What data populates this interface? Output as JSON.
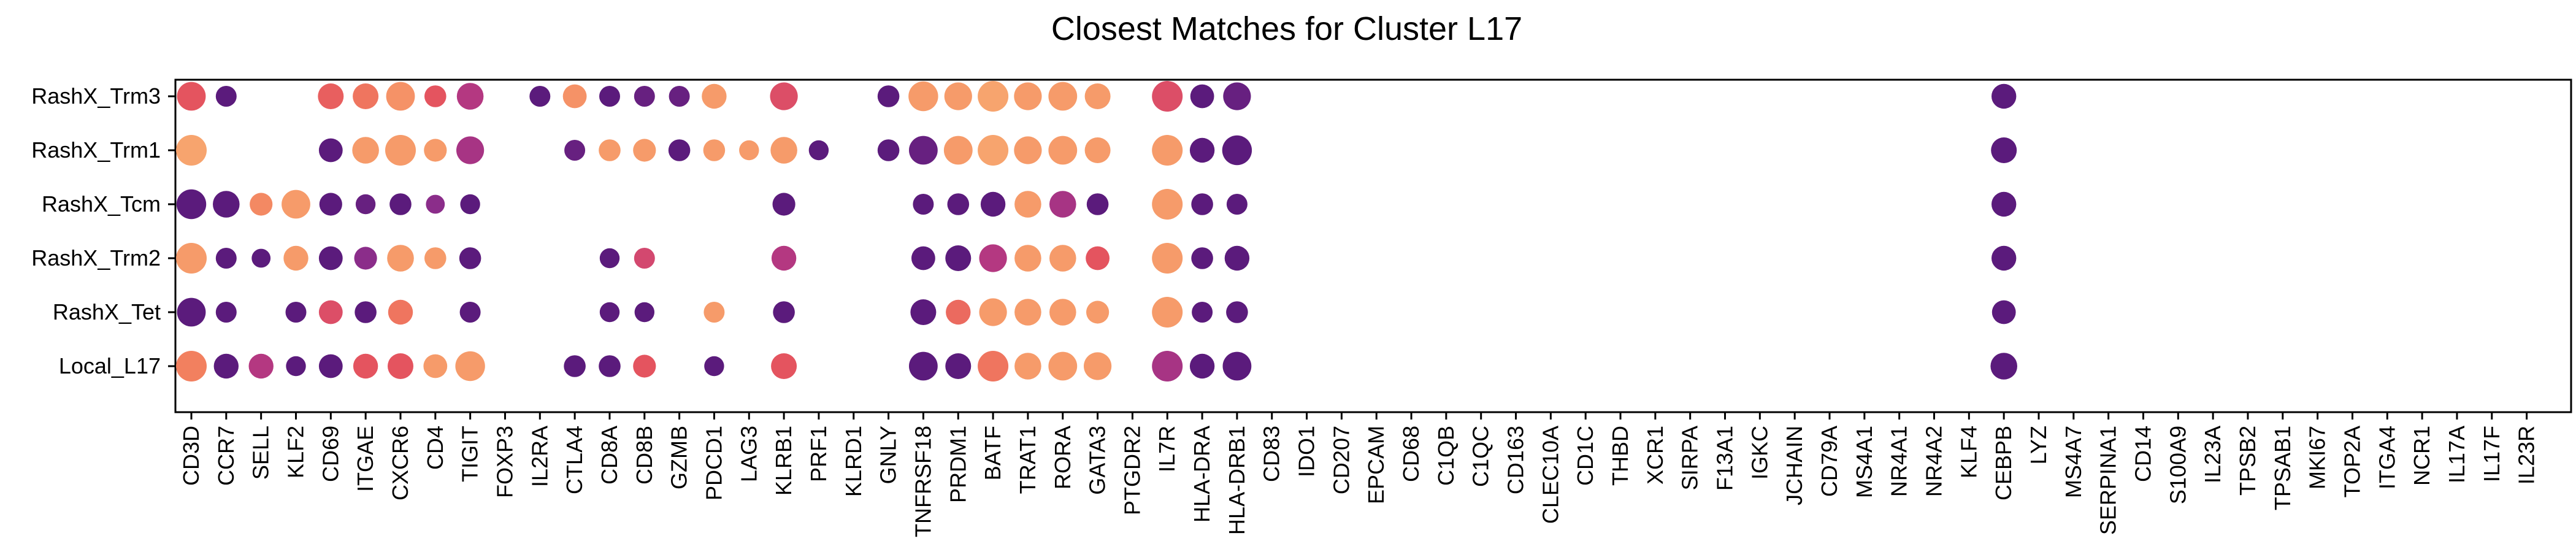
{
  "chart_data": {
    "type": "dotplot",
    "title": "Closest Matches for Cluster L17",
    "xlabel": "",
    "ylabel": "",
    "grid": false,
    "legend": "none",
    "rows": [
      "RashX_Trm3",
      "RashX_Trm1",
      "RashX_Tcm",
      "RashX_Trm2",
      "RashX_Tet",
      "Local_L17"
    ],
    "genes": [
      "CD3D",
      "CCR7",
      "SELL",
      "KLF2",
      "CD69",
      "ITGAE",
      "CXCR6",
      "CD4",
      "TIGIT",
      "FOXP3",
      "IL2RA",
      "CTLA4",
      "CD8A",
      "CD8B",
      "GZMB",
      "PDCD1",
      "LAG3",
      "KLRB1",
      "PRF1",
      "KLRD1",
      "GNLY",
      "TNFRSF18",
      "PRDM1",
      "BATF",
      "TRAT1",
      "RORA",
      "GATA3",
      "PTGDR2",
      "IL7R",
      "HLA-DRA",
      "HLA-DRB1",
      "CD83",
      "IDO1",
      "CD207",
      "EPCAM",
      "CD68",
      "C1QB",
      "C1QC",
      "CD163",
      "CLEC10A",
      "CD1C",
      "THBD",
      "XCR1",
      "SIRPA",
      "F13A1",
      "IGKC",
      "JCHAIN",
      "CD79A",
      "MS4A1",
      "NR4A1",
      "NR4A2",
      "KLF4",
      "CEBPB",
      "LYZ",
      "MS4A7",
      "SERPINA1",
      "CD14",
      "S100A9",
      "IL23A",
      "TPSB2",
      "TPSAB1",
      "MKI67",
      "TOP2A",
      "ITGA4",
      "NCR1",
      "IL17A",
      "IL17F",
      "IL23R"
    ],
    "size_unit": "relative dot size (0-1)",
    "color_unit": "relative expression (0 = dark purple, 1 = light orange)",
    "colormap": [
      "#5b1b7c",
      "#8b2d8a",
      "#c23b7e",
      "#e4545f",
      "#f2805f",
      "#f7a46e"
    ],
    "dots": [
      {
        "row": "RashX_Trm3",
        "gene": "CD3D",
        "size": 0.9,
        "color": 0.6
      },
      {
        "row": "RashX_Trm3",
        "gene": "CCR7",
        "size": 0.5,
        "color": 0.0
      },
      {
        "row": "RashX_Trm3",
        "gene": "CD69",
        "size": 0.75,
        "color": 0.65
      },
      {
        "row": "RashX_Trm3",
        "gene": "ITGAE",
        "size": 0.75,
        "color": 0.75
      },
      {
        "row": "RashX_Trm3",
        "gene": "CXCR6",
        "size": 0.9,
        "color": 0.9
      },
      {
        "row": "RashX_Trm3",
        "gene": "CD4",
        "size": 0.55,
        "color": 0.6
      },
      {
        "row": "RashX_Trm3",
        "gene": "TIGIT",
        "size": 0.8,
        "color": 0.35
      },
      {
        "row": "RashX_Trm3",
        "gene": "IL2RA",
        "size": 0.5,
        "color": 0.0
      },
      {
        "row": "RashX_Trm3",
        "gene": "CTLA4",
        "size": 0.65,
        "color": 0.9
      },
      {
        "row": "RashX_Trm3",
        "gene": "CD8A",
        "size": 0.5,
        "color": 0.0
      },
      {
        "row": "RashX_Trm3",
        "gene": "CD8B",
        "size": 0.5,
        "color": 0.05
      },
      {
        "row": "RashX_Trm3",
        "gene": "GZMB",
        "size": 0.5,
        "color": 0.05
      },
      {
        "row": "RashX_Trm3",
        "gene": "PDCD1",
        "size": 0.7,
        "color": 0.95
      },
      {
        "row": "RashX_Trm3",
        "gene": "KLRB1",
        "size": 0.85,
        "color": 0.55
      },
      {
        "row": "RashX_Trm3",
        "gene": "GNLY",
        "size": 0.55,
        "color": 0.0
      },
      {
        "row": "RashX_Trm3",
        "gene": "TNFRSF18",
        "size": 0.95,
        "color": 0.95
      },
      {
        "row": "RashX_Trm3",
        "gene": "PRDM1",
        "size": 0.85,
        "color": 0.95
      },
      {
        "row": "RashX_Trm3",
        "gene": "BATF",
        "size": 1.0,
        "color": 1.0
      },
      {
        "row": "RashX_Trm3",
        "gene": "TRAT1",
        "size": 0.85,
        "color": 0.95
      },
      {
        "row": "RashX_Trm3",
        "gene": "RORA",
        "size": 0.9,
        "color": 0.95
      },
      {
        "row": "RashX_Trm3",
        "gene": "GATA3",
        "size": 0.75,
        "color": 0.95
      },
      {
        "row": "RashX_Trm3",
        "gene": "IL7R",
        "size": 1.0,
        "color": 0.55
      },
      {
        "row": "RashX_Trm3",
        "gene": "HLA-DRA",
        "size": 0.65,
        "color": 0.0
      },
      {
        "row": "RashX_Trm3",
        "gene": "HLA-DRB1",
        "size": 0.85,
        "color": 0.05
      },
      {
        "row": "RashX_Trm3",
        "gene": "CEBPB",
        "size": 0.7,
        "color": 0.0
      },
      {
        "row": "RashX_Trm1",
        "gene": "CD3D",
        "size": 1.0,
        "color": 1.0
      },
      {
        "row": "RashX_Trm1",
        "gene": "CD69",
        "size": 0.65,
        "color": 0.0
      },
      {
        "row": "RashX_Trm1",
        "gene": "ITGAE",
        "size": 0.8,
        "color": 0.95
      },
      {
        "row": "RashX_Trm1",
        "gene": "CXCR6",
        "size": 1.0,
        "color": 0.95
      },
      {
        "row": "RashX_Trm1",
        "gene": "CD4",
        "size": 0.6,
        "color": 0.95
      },
      {
        "row": "RashX_Trm1",
        "gene": "TIGIT",
        "size": 0.85,
        "color": 0.3
      },
      {
        "row": "RashX_Trm1",
        "gene": "CTLA4",
        "size": 0.5,
        "color": 0.05
      },
      {
        "row": "RashX_Trm1",
        "gene": "CD8A",
        "size": 0.55,
        "color": 0.95
      },
      {
        "row": "RashX_Trm1",
        "gene": "CD8B",
        "size": 0.6,
        "color": 0.95
      },
      {
        "row": "RashX_Trm1",
        "gene": "GZMB",
        "size": 0.55,
        "color": 0.0
      },
      {
        "row": "RashX_Trm1",
        "gene": "PDCD1",
        "size": 0.55,
        "color": 0.95
      },
      {
        "row": "RashX_Trm1",
        "gene": "LAG3",
        "size": 0.45,
        "color": 0.95
      },
      {
        "row": "RashX_Trm1",
        "gene": "KLRB1",
        "size": 0.8,
        "color": 0.95
      },
      {
        "row": "RashX_Trm1",
        "gene": "PRF1",
        "size": 0.45,
        "color": 0.0
      },
      {
        "row": "RashX_Trm1",
        "gene": "GNLY",
        "size": 0.55,
        "color": 0.0
      },
      {
        "row": "RashX_Trm1",
        "gene": "TNFRSF18",
        "size": 0.9,
        "color": 0.05
      },
      {
        "row": "RashX_Trm1",
        "gene": "PRDM1",
        "size": 0.9,
        "color": 0.95
      },
      {
        "row": "RashX_Trm1",
        "gene": "BATF",
        "size": 1.0,
        "color": 1.0
      },
      {
        "row": "RashX_Trm1",
        "gene": "TRAT1",
        "size": 0.85,
        "color": 0.95
      },
      {
        "row": "RashX_Trm1",
        "gene": "RORA",
        "size": 0.9,
        "color": 0.95
      },
      {
        "row": "RashX_Trm1",
        "gene": "GATA3",
        "size": 0.75,
        "color": 0.95
      },
      {
        "row": "RashX_Trm1",
        "gene": "IL7R",
        "size": 1.0,
        "color": 0.95
      },
      {
        "row": "RashX_Trm1",
        "gene": "HLA-DRA",
        "size": 0.7,
        "color": 0.0
      },
      {
        "row": "RashX_Trm1",
        "gene": "HLA-DRB1",
        "size": 0.95,
        "color": 0.0
      },
      {
        "row": "RashX_Trm1",
        "gene": "CEBPB",
        "size": 0.75,
        "color": 0.0
      },
      {
        "row": "RashX_Tcm",
        "gene": "CD3D",
        "size": 0.95,
        "color": 0.0
      },
      {
        "row": "RashX_Tcm",
        "gene": "CCR7",
        "size": 0.8,
        "color": 0.0
      },
      {
        "row": "RashX_Tcm",
        "gene": "SELL",
        "size": 0.6,
        "color": 0.85
      },
      {
        "row": "RashX_Tcm",
        "gene": "KLF2",
        "size": 0.9,
        "color": 0.95
      },
      {
        "row": "RashX_Tcm",
        "gene": "CD69",
        "size": 0.6,
        "color": 0.0
      },
      {
        "row": "RashX_Tcm",
        "gene": "ITGAE",
        "size": 0.45,
        "color": 0.05
      },
      {
        "row": "RashX_Tcm",
        "gene": "CXCR6",
        "size": 0.55,
        "color": 0.0
      },
      {
        "row": "RashX_Tcm",
        "gene": "CD4",
        "size": 0.4,
        "color": 0.2
      },
      {
        "row": "RashX_Tcm",
        "gene": "TIGIT",
        "size": 0.45,
        "color": 0.0
      },
      {
        "row": "RashX_Tcm",
        "gene": "KLRB1",
        "size": 0.6,
        "color": 0.0
      },
      {
        "row": "RashX_Tcm",
        "gene": "TNFRSF18",
        "size": 0.5,
        "color": 0.0
      },
      {
        "row": "RashX_Tcm",
        "gene": "PRDM1",
        "size": 0.55,
        "color": 0.0
      },
      {
        "row": "RashX_Tcm",
        "gene": "BATF",
        "size": 0.7,
        "color": 0.0
      },
      {
        "row": "RashX_Tcm",
        "gene": "TRAT1",
        "size": 0.8,
        "color": 0.95
      },
      {
        "row": "RashX_Tcm",
        "gene": "RORA",
        "size": 0.8,
        "color": 0.3
      },
      {
        "row": "RashX_Tcm",
        "gene": "GATA3",
        "size": 0.55,
        "color": 0.0
      },
      {
        "row": "RashX_Tcm",
        "gene": "IL7R",
        "size": 1.0,
        "color": 0.95
      },
      {
        "row": "RashX_Tcm",
        "gene": "HLA-DRA",
        "size": 0.55,
        "color": 0.0
      },
      {
        "row": "RashX_Tcm",
        "gene": "HLA-DRB1",
        "size": 0.5,
        "color": 0.0
      },
      {
        "row": "RashX_Tcm",
        "gene": "CEBPB",
        "size": 0.7,
        "color": 0.0
      },
      {
        "row": "RashX_Trm2",
        "gene": "CD3D",
        "size": 1.0,
        "color": 0.95
      },
      {
        "row": "RashX_Trm2",
        "gene": "CCR7",
        "size": 0.5,
        "color": 0.0
      },
      {
        "row": "RashX_Trm2",
        "gene": "SELL",
        "size": 0.4,
        "color": 0.0
      },
      {
        "row": "RashX_Trm2",
        "gene": "KLF2",
        "size": 0.7,
        "color": 0.95
      },
      {
        "row": "RashX_Trm2",
        "gene": "CD69",
        "size": 0.65,
        "color": 0.0
      },
      {
        "row": "RashX_Trm2",
        "gene": "ITGAE",
        "size": 0.6,
        "color": 0.2
      },
      {
        "row": "RashX_Trm2",
        "gene": "CXCR6",
        "size": 0.8,
        "color": 0.95
      },
      {
        "row": "RashX_Trm2",
        "gene": "CD4",
        "size": 0.55,
        "color": 0.95
      },
      {
        "row": "RashX_Trm2",
        "gene": "TIGIT",
        "size": 0.55,
        "color": 0.0
      },
      {
        "row": "RashX_Trm2",
        "gene": "CD8A",
        "size": 0.45,
        "color": 0.0
      },
      {
        "row": "RashX_Trm2",
        "gene": "CD8B",
        "size": 0.5,
        "color": 0.5
      },
      {
        "row": "RashX_Trm2",
        "gene": "KLRB1",
        "size": 0.7,
        "color": 0.35
      },
      {
        "row": "RashX_Trm2",
        "gene": "TNFRSF18",
        "size": 0.65,
        "color": 0.0
      },
      {
        "row": "RashX_Trm2",
        "gene": "PRDM1",
        "size": 0.75,
        "color": 0.0
      },
      {
        "row": "RashX_Trm2",
        "gene": "BATF",
        "size": 0.85,
        "color": 0.35
      },
      {
        "row": "RashX_Trm2",
        "gene": "TRAT1",
        "size": 0.8,
        "color": 0.95
      },
      {
        "row": "RashX_Trm2",
        "gene": "RORA",
        "size": 0.8,
        "color": 0.95
      },
      {
        "row": "RashX_Trm2",
        "gene": "GATA3",
        "size": 0.65,
        "color": 0.6
      },
      {
        "row": "RashX_Trm2",
        "gene": "IL7R",
        "size": 1.0,
        "color": 0.95
      },
      {
        "row": "RashX_Trm2",
        "gene": "HLA-DRA",
        "size": 0.55,
        "color": 0.0
      },
      {
        "row": "RashX_Trm2",
        "gene": "HLA-DRB1",
        "size": 0.7,
        "color": 0.0
      },
      {
        "row": "RashX_Trm2",
        "gene": "CEBPB",
        "size": 0.7,
        "color": 0.0
      },
      {
        "row": "RashX_Tet",
        "gene": "CD3D",
        "size": 0.9,
        "color": 0.0
      },
      {
        "row": "RashX_Tet",
        "gene": "CCR7",
        "size": 0.5,
        "color": 0.0
      },
      {
        "row": "RashX_Tet",
        "gene": "KLF2",
        "size": 0.5,
        "color": 0.0
      },
      {
        "row": "RashX_Tet",
        "gene": "CD69",
        "size": 0.65,
        "color": 0.55
      },
      {
        "row": "RashX_Tet",
        "gene": "ITGAE",
        "size": 0.55,
        "color": 0.0
      },
      {
        "row": "RashX_Tet",
        "gene": "CXCR6",
        "size": 0.7,
        "color": 0.75
      },
      {
        "row": "RashX_Tet",
        "gene": "TIGIT",
        "size": 0.5,
        "color": 0.0
      },
      {
        "row": "RashX_Tet",
        "gene": "CD8A",
        "size": 0.45,
        "color": 0.0
      },
      {
        "row": "RashX_Tet",
        "gene": "CD8B",
        "size": 0.45,
        "color": 0.0
      },
      {
        "row": "RashX_Tet",
        "gene": "PDCD1",
        "size": 0.5,
        "color": 0.95
      },
      {
        "row": "RashX_Tet",
        "gene": "KLRB1",
        "size": 0.55,
        "color": 0.0
      },
      {
        "row": "RashX_Tet",
        "gene": "TNFRSF18",
        "size": 0.75,
        "color": 0.0
      },
      {
        "row": "RashX_Tet",
        "gene": "PRDM1",
        "size": 0.7,
        "color": 0.7
      },
      {
        "row": "RashX_Tet",
        "gene": "BATF",
        "size": 0.85,
        "color": 0.95
      },
      {
        "row": "RashX_Tet",
        "gene": "TRAT1",
        "size": 0.8,
        "color": 0.95
      },
      {
        "row": "RashX_Tet",
        "gene": "RORA",
        "size": 0.8,
        "color": 0.95
      },
      {
        "row": "RashX_Tet",
        "gene": "GATA3",
        "size": 0.6,
        "color": 0.95
      },
      {
        "row": "RashX_Tet",
        "gene": "IL7R",
        "size": 1.0,
        "color": 0.95
      },
      {
        "row": "RashX_Tet",
        "gene": "HLA-DRA",
        "size": 0.5,
        "color": 0.0
      },
      {
        "row": "RashX_Tet",
        "gene": "HLA-DRB1",
        "size": 0.55,
        "color": 0.0
      },
      {
        "row": "RashX_Tet",
        "gene": "CEBPB",
        "size": 0.65,
        "color": 0.0
      },
      {
        "row": "Local_L17",
        "gene": "CD3D",
        "size": 1.0,
        "color": 0.8
      },
      {
        "row": "Local_L17",
        "gene": "CCR7",
        "size": 0.7,
        "color": 0.0
      },
      {
        "row": "Local_L17",
        "gene": "SELL",
        "size": 0.7,
        "color": 0.35
      },
      {
        "row": "Local_L17",
        "gene": "KLF2",
        "size": 0.45,
        "color": 0.0
      },
      {
        "row": "Local_L17",
        "gene": "CD69",
        "size": 0.65,
        "color": 0.0
      },
      {
        "row": "Local_L17",
        "gene": "ITGAE",
        "size": 0.7,
        "color": 0.6
      },
      {
        "row": "Local_L17",
        "gene": "CXCR6",
        "size": 0.75,
        "color": 0.6
      },
      {
        "row": "Local_L17",
        "gene": "CD4",
        "size": 0.65,
        "color": 0.95
      },
      {
        "row": "Local_L17",
        "gene": "TIGIT",
        "size": 0.95,
        "color": 0.95
      },
      {
        "row": "Local_L17",
        "gene": "CTLA4",
        "size": 0.55,
        "color": 0.0
      },
      {
        "row": "Local_L17",
        "gene": "CD8A",
        "size": 0.55,
        "color": 0.0
      },
      {
        "row": "Local_L17",
        "gene": "CD8B",
        "size": 0.6,
        "color": 0.6
      },
      {
        "row": "Local_L17",
        "gene": "PDCD1",
        "size": 0.45,
        "color": 0.0
      },
      {
        "row": "Local_L17",
        "gene": "KLRB1",
        "size": 0.75,
        "color": 0.6
      },
      {
        "row": "Local_L17",
        "gene": "TNFRSF18",
        "size": 0.9,
        "color": 0.0
      },
      {
        "row": "Local_L17",
        "gene": "PRDM1",
        "size": 0.75,
        "color": 0.0
      },
      {
        "row": "Local_L17",
        "gene": "BATF",
        "size": 1.0,
        "color": 0.75
      },
      {
        "row": "Local_L17",
        "gene": "TRAT1",
        "size": 0.8,
        "color": 0.95
      },
      {
        "row": "Local_L17",
        "gene": "RORA",
        "size": 0.9,
        "color": 0.95
      },
      {
        "row": "Local_L17",
        "gene": "GATA3",
        "size": 0.85,
        "color": 0.95
      },
      {
        "row": "Local_L17",
        "gene": "IL7R",
        "size": 1.0,
        "color": 0.3
      },
      {
        "row": "Local_L17",
        "gene": "HLA-DRA",
        "size": 0.7,
        "color": 0.0
      },
      {
        "row": "Local_L17",
        "gene": "HLA-DRB1",
        "size": 0.9,
        "color": 0.0
      },
      {
        "row": "Local_L17",
        "gene": "CEBPB",
        "size": 0.8,
        "color": 0.0
      }
    ]
  }
}
